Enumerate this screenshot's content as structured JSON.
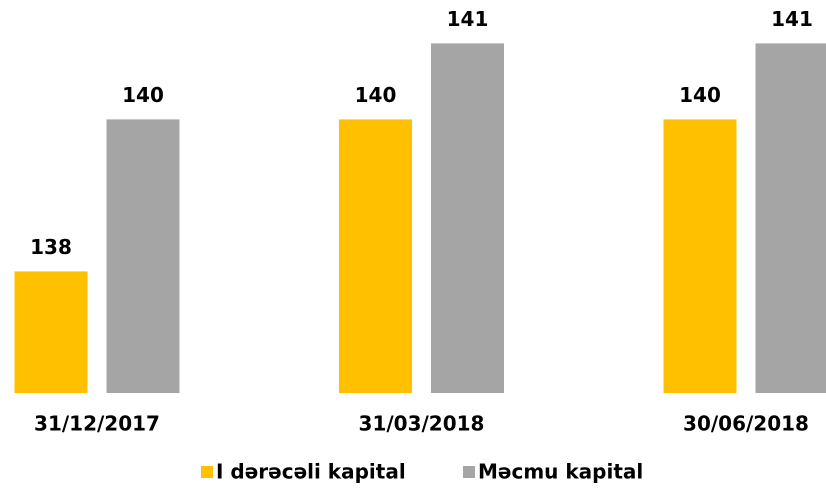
{
  "chart_data": {
    "type": "bar",
    "categories": [
      "31/12/2017",
      "31/03/2018",
      "30/06/2018"
    ],
    "series": [
      {
        "name": "I dərəcəli kapital",
        "color": "#ffc000",
        "values": [
          138,
          140,
          140
        ]
      },
      {
        "name": "Məcmu kapital",
        "color": "#a5a5a5",
        "values": [
          140,
          141,
          141
        ]
      }
    ],
    "ylim": [
      136.4,
      141.5
    ],
    "grid": false,
    "legend": "bottom"
  }
}
